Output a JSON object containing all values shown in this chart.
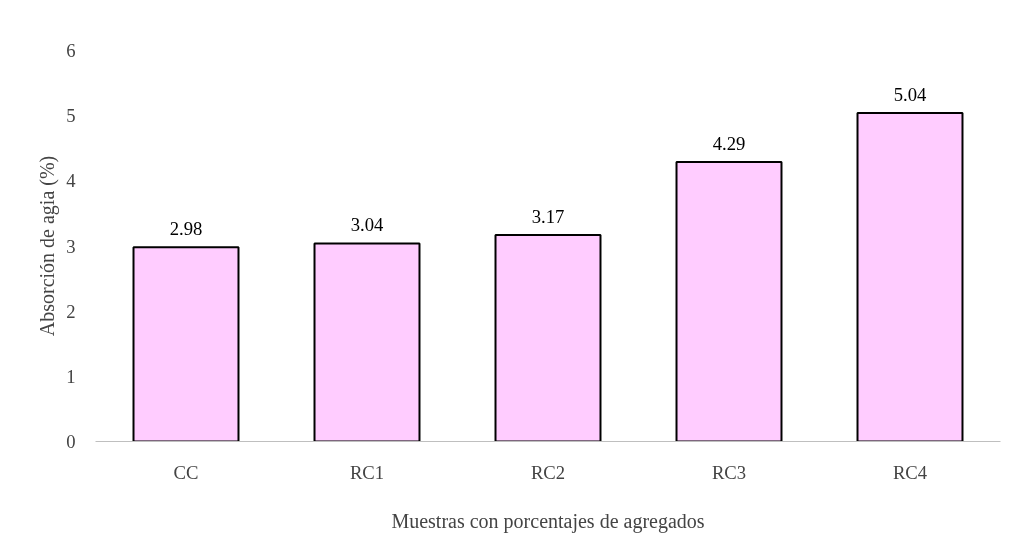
{
  "chart_data": {
    "type": "bar",
    "xlabel": "Muestras con porcentajes de agregados",
    "ylabel": "Absorción de agia (%)",
    "categories": [
      "CC",
      "RC1",
      "RC2",
      "RC3",
      "RC4"
    ],
    "values": [
      2.98,
      3.04,
      3.17,
      4.29,
      5.04
    ],
    "color": "#ffccff",
    "ylim": [
      0,
      6
    ],
    "yticks": [
      0,
      1,
      2,
      3,
      4,
      5,
      6
    ],
    "grid": false,
    "data_labels": true
  }
}
